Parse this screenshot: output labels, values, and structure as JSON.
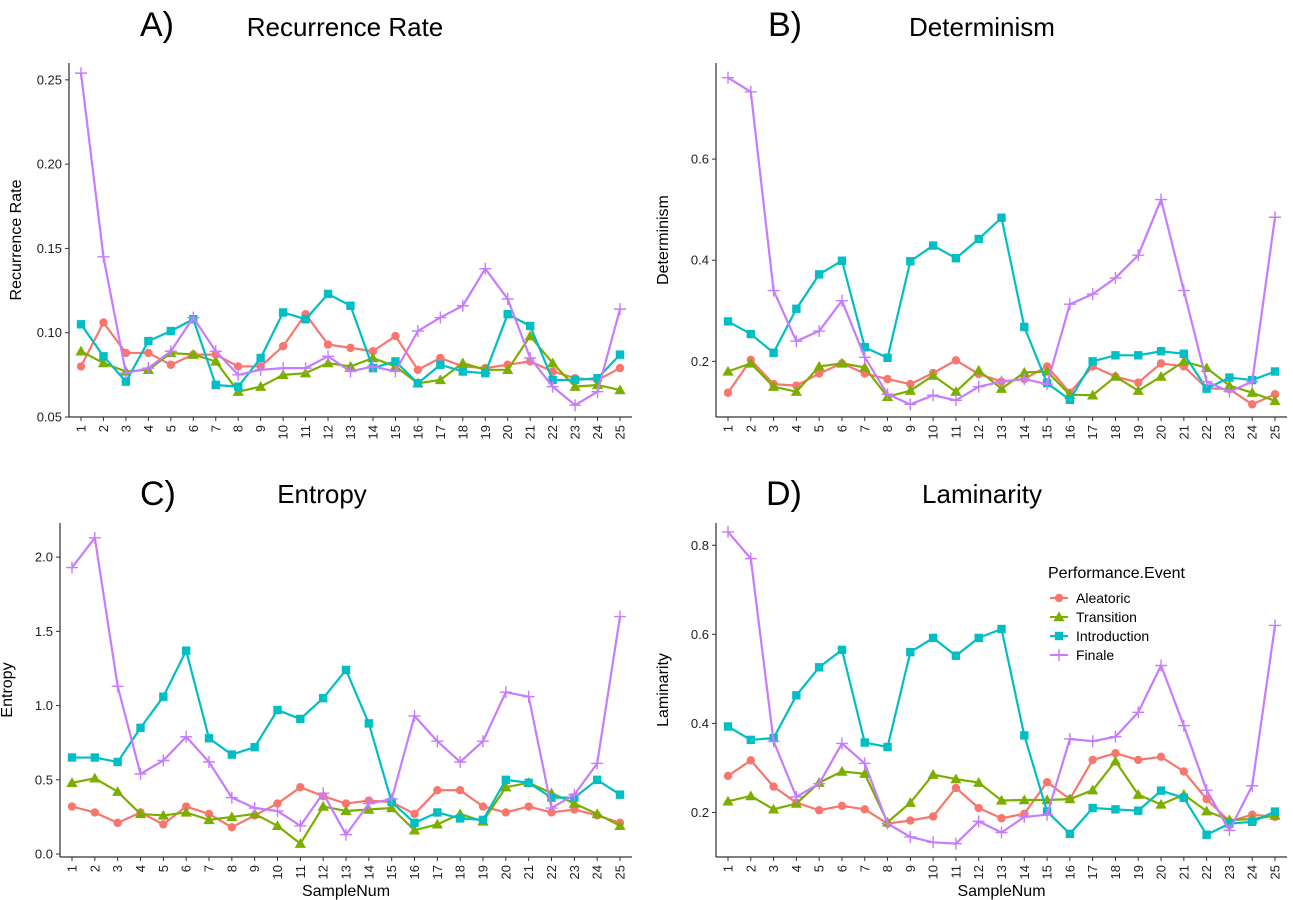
{
  "figure": {
    "legend": {
      "title": "Performance.Event",
      "placement": "right, inside panel D"
    }
  },
  "chart_data": [
    {
      "type": "line",
      "panel_label": "A)",
      "title": "Recurrence Rate",
      "xlabel": "",
      "ylabel": "Recurrence Rate",
      "ylim": [
        0.05,
        0.26
      ],
      "yticks": [
        0.05,
        0.1,
        0.15,
        0.2,
        0.25
      ],
      "ytick_labels": [
        "0.05",
        "0.10",
        "0.15",
        "0.20",
        "0.25"
      ],
      "x": [
        1,
        2,
        3,
        4,
        5,
        6,
        7,
        8,
        9,
        10,
        11,
        12,
        13,
        14,
        15,
        16,
        17,
        18,
        19,
        20,
        21,
        22,
        23,
        24,
        25
      ],
      "grid": false,
      "series": [
        {
          "name": "Aleatoric",
          "color": "#F8766D",
          "marker": "circle",
          "values": [
            0.08,
            0.106,
            0.088,
            0.088,
            0.081,
            0.087,
            0.087,
            0.08,
            0.08,
            0.092,
            0.111,
            0.093,
            0.091,
            0.089,
            0.098,
            0.078,
            0.085,
            0.08,
            0.079,
            0.081,
            0.083,
            0.077,
            0.073,
            0.072,
            0.079
          ]
        },
        {
          "name": "Transition",
          "color": "#7CAE00",
          "marker": "triangle",
          "values": [
            0.089,
            0.082,
            0.077,
            0.078,
            0.088,
            0.087,
            0.083,
            0.065,
            0.068,
            0.075,
            0.076,
            0.082,
            0.08,
            0.085,
            0.08,
            0.07,
            0.072,
            0.082,
            0.078,
            0.078,
            0.098,
            0.082,
            0.068,
            0.069,
            0.066
          ]
        },
        {
          "name": "Introduction",
          "color": "#00BFC4",
          "marker": "square",
          "values": [
            0.105,
            0.086,
            0.071,
            0.095,
            0.101,
            0.108,
            0.069,
            0.068,
            0.085,
            0.112,
            0.108,
            0.123,
            0.116,
            0.079,
            0.083,
            0.07,
            0.081,
            0.077,
            0.076,
            0.111,
            0.104,
            0.072,
            0.072,
            0.073,
            0.087
          ]
        },
        {
          "name": "Finale",
          "color": "#C77CFF",
          "marker": "plus",
          "values": [
            0.254,
            0.145,
            0.076,
            0.079,
            0.089,
            0.109,
            0.089,
            0.075,
            0.078,
            0.079,
            0.079,
            0.086,
            0.077,
            0.08,
            0.077,
            0.101,
            0.109,
            0.116,
            0.138,
            0.12,
            0.085,
            0.068,
            0.057,
            0.065,
            0.114
          ]
        }
      ]
    },
    {
      "type": "line",
      "panel_label": "B)",
      "title": "Determinism",
      "xlabel": "",
      "ylabel": "Determinism",
      "ylim": [
        0.09,
        0.79
      ],
      "yticks": [
        0.2,
        0.4,
        0.6
      ],
      "ytick_labels": [
        "0.2",
        "0.4",
        "0.6"
      ],
      "x": [
        1,
        2,
        3,
        4,
        5,
        6,
        7,
        8,
        9,
        10,
        11,
        12,
        13,
        14,
        15,
        16,
        17,
        18,
        19,
        20,
        21,
        22,
        23,
        24,
        25
      ],
      "grid": false,
      "series": [
        {
          "name": "Aleatoric",
          "color": "#F8766D",
          "marker": "circle",
          "values": [
            0.138,
            0.203,
            0.155,
            0.152,
            0.176,
            0.196,
            0.176,
            0.165,
            0.155,
            0.177,
            0.202,
            0.175,
            0.16,
            0.165,
            0.19,
            0.138,
            0.19,
            0.17,
            0.158,
            0.196,
            0.19,
            0.147,
            0.145,
            0.115,
            0.135
          ]
        },
        {
          "name": "Transition",
          "color": "#7CAE00",
          "marker": "triangle",
          "values": [
            0.18,
            0.196,
            0.15,
            0.14,
            0.19,
            0.196,
            0.188,
            0.13,
            0.142,
            0.172,
            0.14,
            0.182,
            0.146,
            0.178,
            0.18,
            0.134,
            0.133,
            0.17,
            0.142,
            0.17,
            0.2,
            0.187,
            0.152,
            0.138,
            0.122
          ]
        },
        {
          "name": "Introduction",
          "color": "#00BFC4",
          "marker": "square",
          "values": [
            0.279,
            0.254,
            0.217,
            0.304,
            0.372,
            0.399,
            0.228,
            0.207,
            0.398,
            0.429,
            0.404,
            0.442,
            0.484,
            0.268,
            0.157,
            0.124,
            0.2,
            0.212,
            0.212,
            0.22,
            0.215,
            0.146,
            0.168,
            0.163,
            0.18
          ]
        },
        {
          "name": "Finale",
          "color": "#C77CFF",
          "marker": "plus",
          "values": [
            0.761,
            0.733,
            0.34,
            0.24,
            0.26,
            0.32,
            0.208,
            0.135,
            0.115,
            0.133,
            0.123,
            0.15,
            0.16,
            0.165,
            0.155,
            0.313,
            0.333,
            0.365,
            0.41,
            0.52,
            0.34,
            0.16,
            0.14,
            0.16,
            0.485
          ]
        }
      ]
    },
    {
      "type": "line",
      "panel_label": "C)",
      "title": "Entropy",
      "xlabel": "SampleNum",
      "ylabel": "Entropy",
      "ylim": [
        -0.02,
        2.23
      ],
      "yticks": [
        0.0,
        0.5,
        1.0,
        1.5,
        2.0
      ],
      "ytick_labels": [
        "0.0",
        "0.5",
        "1.0",
        "1.5",
        "2.0"
      ],
      "x": [
        1,
        2,
        3,
        4,
        5,
        6,
        7,
        8,
        9,
        10,
        11,
        12,
        13,
        14,
        15,
        16,
        17,
        18,
        19,
        20,
        21,
        22,
        23,
        24,
        25
      ],
      "grid": false,
      "series": [
        {
          "name": "Aleatoric",
          "color": "#F8766D",
          "marker": "circle",
          "values": [
            0.32,
            0.28,
            0.21,
            0.28,
            0.2,
            0.32,
            0.27,
            0.18,
            0.26,
            0.34,
            0.45,
            0.39,
            0.34,
            0.36,
            0.35,
            0.27,
            0.43,
            0.43,
            0.32,
            0.28,
            0.32,
            0.28,
            0.3,
            0.26,
            0.21
          ]
        },
        {
          "name": "Transition",
          "color": "#7CAE00",
          "marker": "triangle",
          "values": [
            0.48,
            0.51,
            0.42,
            0.27,
            0.26,
            0.28,
            0.23,
            0.25,
            0.27,
            0.19,
            0.07,
            0.32,
            0.29,
            0.3,
            0.31,
            0.16,
            0.2,
            0.27,
            0.22,
            0.45,
            0.48,
            0.41,
            0.34,
            0.27,
            0.19
          ]
        },
        {
          "name": "Introduction",
          "color": "#00BFC4",
          "marker": "square",
          "values": [
            0.65,
            0.65,
            0.62,
            0.85,
            1.06,
            1.37,
            0.78,
            0.67,
            0.72,
            0.97,
            0.91,
            1.05,
            1.24,
            0.88,
            0.35,
            0.21,
            0.28,
            0.24,
            0.23,
            0.5,
            0.48,
            0.38,
            0.38,
            0.5,
            0.4
          ]
        },
        {
          "name": "Finale",
          "color": "#C77CFF",
          "marker": "plus",
          "values": [
            1.93,
            2.13,
            1.13,
            0.54,
            0.63,
            0.79,
            0.62,
            0.38,
            0.31,
            0.29,
            0.19,
            0.41,
            0.13,
            0.34,
            0.37,
            0.93,
            0.76,
            0.62,
            0.76,
            1.09,
            1.06,
            0.31,
            0.4,
            0.61,
            1.6
          ]
        }
      ]
    },
    {
      "type": "line",
      "panel_label": "D)",
      "title": "Laminarity",
      "xlabel": "SampleNum",
      "ylabel": "Laminarity",
      "ylim": [
        0.1,
        0.85
      ],
      "yticks": [
        0.2,
        0.4,
        0.6,
        0.8
      ],
      "ytick_labels": [
        "0.2",
        "0.4",
        "0.6",
        "0.8"
      ],
      "x": [
        1,
        2,
        3,
        4,
        5,
        6,
        7,
        8,
        9,
        10,
        11,
        12,
        13,
        14,
        15,
        16,
        17,
        18,
        19,
        20,
        21,
        22,
        23,
        24,
        25
      ],
      "grid": false,
      "series": [
        {
          "name": "Aleatoric",
          "color": "#F8766D",
          "marker": "circle",
          "values": [
            0.282,
            0.317,
            0.258,
            0.222,
            0.205,
            0.215,
            0.207,
            0.175,
            0.182,
            0.191,
            0.255,
            0.21,
            0.187,
            0.197,
            0.268,
            0.23,
            0.318,
            0.333,
            0.318,
            0.325,
            0.292,
            0.23,
            0.18,
            0.195,
            0.19
          ]
        },
        {
          "name": "Transition",
          "color": "#7CAE00",
          "marker": "triangle",
          "values": [
            0.225,
            0.237,
            0.207,
            0.22,
            0.267,
            0.292,
            0.287,
            0.178,
            0.222,
            0.285,
            0.275,
            0.267,
            0.227,
            0.228,
            0.228,
            0.23,
            0.25,
            0.315,
            0.24,
            0.218,
            0.24,
            0.203,
            0.183,
            0.185,
            0.193
          ]
        },
        {
          "name": "Introduction",
          "color": "#00BFC4",
          "marker": "square",
          "values": [
            0.393,
            0.363,
            0.367,
            0.463,
            0.526,
            0.565,
            0.357,
            0.347,
            0.56,
            0.592,
            0.552,
            0.592,
            0.612,
            0.373,
            0.202,
            0.152,
            0.21,
            0.207,
            0.204,
            0.249,
            0.233,
            0.15,
            0.175,
            0.179,
            0.202
          ]
        },
        {
          "name": "Finale",
          "color": "#C77CFF",
          "marker": "plus",
          "values": [
            0.83,
            0.77,
            0.36,
            0.235,
            0.265,
            0.355,
            0.31,
            0.175,
            0.145,
            0.133,
            0.13,
            0.18,
            0.155,
            0.19,
            0.195,
            0.365,
            0.36,
            0.37,
            0.425,
            0.53,
            0.395,
            0.25,
            0.16,
            0.26,
            0.62
          ]
        }
      ]
    }
  ]
}
